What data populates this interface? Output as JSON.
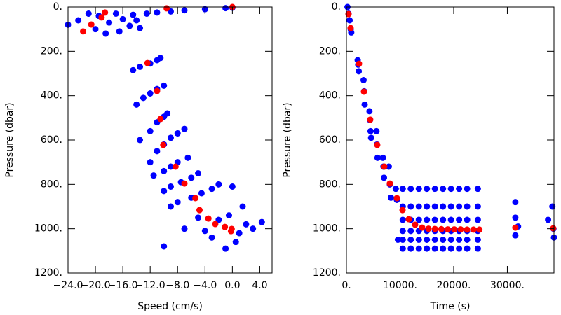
{
  "chart_data": [
    {
      "type": "scatter",
      "xlabel": "Speed (cm/s)",
      "ylabel": "Pressure (dbar)",
      "xlim": [
        -24,
        5.8
      ],
      "ylim": [
        0,
        1200
      ],
      "y_reversed": true,
      "xticks": [
        {
          "value": -24,
          "label": "−24.0"
        },
        {
          "value": -20,
          "label": "−20.0"
        },
        {
          "value": -16,
          "label": "−16.0"
        },
        {
          "value": -12,
          "label": "−12.0"
        },
        {
          "value": -8,
          "label": "−8.0"
        },
        {
          "value": -4,
          "label": "−4.0"
        },
        {
          "value": 0,
          "label": "0.0"
        },
        {
          "value": 4,
          "label": "4.0"
        }
      ],
      "yticks": [
        {
          "value": 0,
          "label": "0."
        },
        {
          "value": 200,
          "label": "200."
        },
        {
          "value": 400,
          "label": "400."
        },
        {
          "value": 600,
          "label": "600."
        },
        {
          "value": 800,
          "label": "800."
        },
        {
          "value": 1000,
          "label": "1000."
        },
        {
          "value": 1200,
          "label": "1200."
        }
      ],
      "series": [
        {
          "color": "#0000ff",
          "x": [
            -24,
            -22.5,
            -21,
            -20,
            -19.5,
            -18.5,
            -18,
            -17,
            -16.5,
            -16,
            -15,
            -14.5,
            -14,
            -13.5,
            -12.5,
            -11,
            -9,
            -7,
            -4,
            -1,
            0,
            -14.5,
            -13.5,
            -12,
            -11,
            -10.5,
            -14,
            -13,
            -12,
            -11,
            -10,
            -13.5,
            -12,
            -11,
            -10,
            -9.5,
            -12,
            -11,
            -10,
            -9,
            -8,
            -7,
            -11.5,
            -10,
            -9,
            -8,
            -6.5,
            -10,
            -9,
            -7.5,
            -6,
            -5,
            -9,
            -8,
            -6,
            -4.5,
            -3,
            -2,
            0,
            -10,
            -7,
            -5,
            -3,
            -1,
            0.5,
            1,
            2,
            3,
            4.3,
            -0.5,
            1.5,
            -2,
            -4
          ],
          "values": [
            80,
            60,
            30,
            100,
            40,
            120,
            70,
            30,
            110,
            55,
            85,
            35,
            60,
            95,
            30,
            25,
            20,
            15,
            10,
            5,
            3,
            285,
            270,
            255,
            240,
            230,
            440,
            410,
            390,
            370,
            355,
            600,
            560,
            520,
            495,
            480,
            700,
            650,
            620,
            590,
            570,
            550,
            760,
            740,
            720,
            700,
            680,
            830,
            810,
            790,
            770,
            750,
            900,
            880,
            860,
            840,
            820,
            800,
            810,
            1080,
            1000,
            950,
            1040,
            1090,
            1060,
            1020,
            980,
            1000,
            970,
            940,
            900,
            960,
            1010
          ]
        },
        {
          "color": "#ff0000",
          "x": [
            -21.8,
            -20.6,
            -19.1,
            -18.6,
            -9.6,
            0,
            -12.4,
            -11,
            -10.5,
            -10.1,
            -8.3,
            -7,
            -5.4,
            -4.8,
            -3.5,
            -2.5,
            -1.1,
            -0.1,
            -0.2
          ],
          "values": [
            110,
            79,
            47,
            25,
            6,
            0,
            253,
            379,
            505,
            622,
            720,
            796,
            862,
            916,
            954,
            979,
            992,
            1001,
            1011
          ]
        }
      ]
    },
    {
      "type": "scatter",
      "xlabel": "Time (s)",
      "ylabel": "Pressure (dbar)",
      "xlim": [
        0,
        38700
      ],
      "ylim": [
        0,
        1200
      ],
      "y_reversed": true,
      "xticks": [
        {
          "value": 0,
          "label": "0."
        },
        {
          "value": 10000,
          "label": "10000."
        },
        {
          "value": 20000,
          "label": "20000."
        },
        {
          "value": 30000,
          "label": "30000."
        }
      ],
      "yticks": [
        {
          "value": 0,
          "label": "0."
        },
        {
          "value": 200,
          "label": "200."
        },
        {
          "value": 400,
          "label": "400."
        },
        {
          "value": 600,
          "label": "600."
        },
        {
          "value": 800,
          "label": "800."
        },
        {
          "value": 1000,
          "label": "1000."
        },
        {
          "value": 1200,
          "label": "1200."
        }
      ],
      "series": [
        {
          "color": "#0000ff",
          "x": [
            200,
            400,
            600,
            800,
            900,
            2100,
            2200,
            2300,
            3200,
            3300,
            3400,
            4300,
            4400,
            4500,
            4600,
            5600,
            5700,
            5800,
            6800,
            6900,
            7000,
            7900,
            8100,
            8300,
            9200,
            9400,
            9600,
            10500,
            10500,
            10500,
            10500,
            10500,
            10500,
            12000,
            12000,
            12000,
            12000,
            12000,
            12000,
            13500,
            13500,
            13500,
            13500,
            13500,
            13500,
            15000,
            15000,
            15000,
            15000,
            15000,
            15000,
            16500,
            16500,
            16500,
            16500,
            16500,
            16500,
            18000,
            18000,
            18000,
            18000,
            18000,
            18000,
            19500,
            19500,
            19500,
            19500,
            19500,
            19500,
            21000,
            21000,
            21000,
            21000,
            21000,
            21000,
            22500,
            22500,
            22500,
            22500,
            22500,
            22500,
            24500,
            24500,
            24500,
            24500,
            24500,
            24500,
            31500,
            31500,
            31500,
            32000,
            37600,
            38400,
            38600,
            38700
          ],
          "values": [
            0,
            30,
            60,
            100,
            115,
            240,
            260,
            290,
            330,
            380,
            440,
            470,
            510,
            560,
            590,
            560,
            620,
            680,
            680,
            720,
            770,
            720,
            800,
            860,
            820,
            870,
            1050,
            820,
            900,
            960,
            1010,
            1050,
            1090,
            820,
            900,
            960,
            1010,
            1050,
            1090,
            820,
            900,
            960,
            1010,
            1050,
            1090,
            820,
            900,
            960,
            1010,
            1050,
            1090,
            820,
            900,
            960,
            1010,
            1050,
            1090,
            820,
            900,
            960,
            1010,
            1050,
            1090,
            820,
            900,
            960,
            1010,
            1050,
            1090,
            820,
            900,
            960,
            1010,
            1050,
            1090,
            820,
            900,
            960,
            1010,
            1050,
            1090,
            820,
            900,
            960,
            1010,
            1050,
            1090,
            880,
            950,
            1030,
            990,
            960,
            900,
            1000,
            1040
          ]
        },
        {
          "color": "#ff0000",
          "x": [
            390,
            780,
            2350,
            3270,
            4440,
            5750,
            7060,
            8100,
            9410,
            10460,
            11630,
            12810,
            14120,
            15300,
            16500,
            17700,
            18900,
            20100,
            21300,
            22500,
            23700,
            24800,
            31500,
            38560
          ],
          "values": [
            32,
            95,
            256,
            382,
            508,
            622,
            720,
            796,
            862,
            916,
            957,
            982,
            995,
            1000,
            1001,
            1002,
            1003,
            1003,
            1003,
            1004,
            1004,
            1004,
            995,
            998
          ]
        }
      ]
    }
  ]
}
